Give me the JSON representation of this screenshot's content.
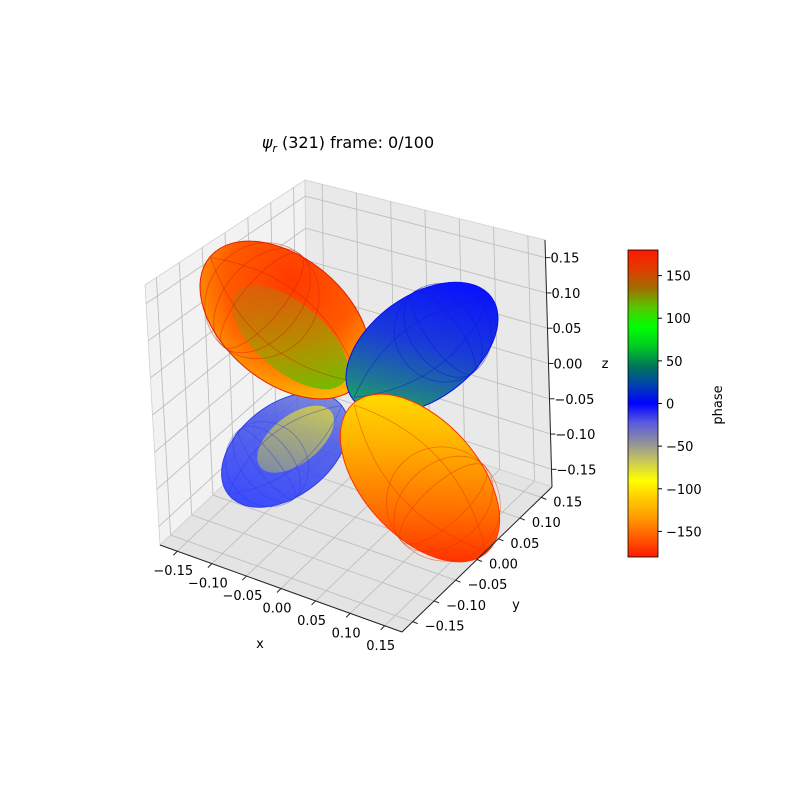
{
  "chart_data": {
    "type": "surface3d",
    "title_psi": "ψ",
    "title_sub": "r",
    "title_rest": " (321) frame: 0/100",
    "xlabel": "x",
    "ylabel": "y",
    "zlabel": "z",
    "xlim": [
      -0.17,
      0.17
    ],
    "ylim": [
      -0.17,
      0.17
    ],
    "zlim": [
      -0.17,
      0.17
    ],
    "x_ticks": [
      "−0.15",
      "−0.10",
      "−0.05",
      "0.00",
      "0.05",
      "0.10",
      "0.15"
    ],
    "y_ticks": [
      "−0.15",
      "−0.10",
      "−0.05",
      "0.00",
      "0.05",
      "0.10",
      "0.15"
    ],
    "z_ticks": [
      "−0.15",
      "−0.10",
      "−0.05",
      "0.00",
      "0.05",
      "0.10",
      "0.15"
    ],
    "grid": true,
    "lobes": [
      {
        "direction": "upper-left",
        "phase": 180,
        "color": "#ff2200"
      },
      {
        "direction": "upper-right",
        "phase": 0,
        "color": "#0011ff"
      },
      {
        "direction": "lower-left",
        "phase": 0,
        "color": "#1a2cff"
      },
      {
        "direction": "lower-right",
        "phase": 180,
        "color": "#ff3300"
      }
    ],
    "colorbar": {
      "label": "phase",
      "range": [
        -180,
        180
      ],
      "ticks": [
        "150",
        "100",
        "50",
        "0",
        "−50",
        "−100",
        "−150"
      ],
      "colors": [
        "#ff1a00",
        "#ff5a00",
        "#ff9800",
        "#ffc800",
        "#ffff00",
        "#c8c85a",
        "#8e8ea0",
        "#5a5ae0",
        "#0000ff",
        "#0044aa",
        "#007a55",
        "#00cc22",
        "#00ff00",
        "#55c800",
        "#a06e00",
        "#e03c00",
        "#ff1a00"
      ]
    }
  }
}
